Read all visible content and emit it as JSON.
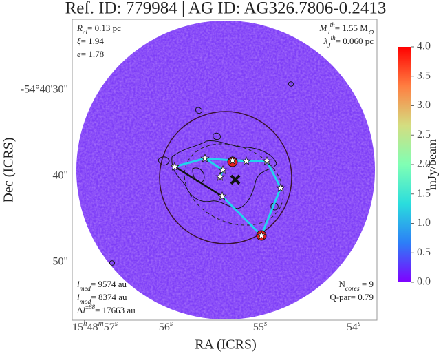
{
  "chart_data": {
    "type": "image",
    "title": "Ref. ID: 779984 | AG ID: AG326.7806-0.2413",
    "x_label": "RA (ICRS)",
    "y_label": "Dec (ICRS)",
    "xticks": [
      [
        {
          "text": "15"
        },
        {
          "text": "h",
          "style": "sup"
        },
        {
          "text": "48"
        },
        {
          "text": "m",
          "style": "sup"
        },
        {
          "text": "57"
        },
        {
          "text": "s",
          "style": "sup"
        }
      ],
      [
        {
          "text": "56"
        },
        {
          "text": "s",
          "style": "sup"
        }
      ],
      [
        {
          "text": "55"
        },
        {
          "text": "s",
          "style": "sup"
        }
      ],
      [
        {
          "text": "54"
        },
        {
          "text": "s",
          "style": "sup"
        }
      ]
    ],
    "yticks": [
      "-54°40'30\"",
      "40\"",
      "50\""
    ],
    "colorbar": {
      "label": "mJy/beam",
      "lim": [
        0,
        4
      ],
      "ticks": [
        {
          "value": 0,
          "label": "0.0"
        },
        {
          "value": 0.5,
          "label": "0.5"
        },
        {
          "value": 1,
          "label": "1.0"
        },
        {
          "value": 1.5,
          "label": "1.5"
        },
        {
          "value": 2,
          "label": "2.0"
        },
        {
          "value": 2.5,
          "label": "2.5"
        },
        {
          "value": 3,
          "label": "3.0"
        },
        {
          "value": 3.5,
          "label": "3.5"
        },
        {
          "value": 4,
          "label": "4.0"
        }
      ],
      "colormap": [
        "#8000ff",
        "#2c7ef7",
        "#2adddd",
        "#80ffb4",
        "#d4dd80",
        "#ff7e41",
        "#ff0000"
      ]
    },
    "annotations": {
      "top_left": [
        [
          {
            "text": "R",
            "style": "italic"
          },
          {
            "text": "cl",
            "style": "sub"
          },
          {
            "text": "= 0.13 pc"
          }
        ],
        [
          {
            "text": "ξ",
            "style": "italic"
          },
          {
            "text": "= 1.94"
          }
        ],
        [
          {
            "text": "e",
            "style": "italic"
          },
          {
            "text": "= 1.78"
          }
        ]
      ],
      "top_right": [
        [
          {
            "text": "M",
            "style": "italic"
          },
          {
            "text": "J",
            "style": "sub"
          },
          {
            "text": "th",
            "style": "sup"
          },
          {
            "text": "= 1.55 M"
          },
          {
            "text": "⊙",
            "style": "sub"
          }
        ],
        [
          {
            "text": "λ",
            "style": "italic"
          },
          {
            "text": "J",
            "style": "sub"
          },
          {
            "text": "th",
            "style": "sup"
          },
          {
            "text": "= 0.060 pc"
          }
        ]
      ],
      "bottom_left": [
        [
          {
            "text": "l",
            "style": "italic"
          },
          {
            "text": "med",
            "style": "sub"
          },
          {
            "text": "= 9574 au"
          }
        ],
        [
          {
            "text": "l",
            "style": "italic"
          },
          {
            "text": "mod",
            "style": "sub"
          },
          {
            "text": "= 8374 au"
          }
        ],
        [
          {
            "text": "Δ"
          },
          {
            "text": "l",
            "style": "italic"
          },
          {
            "text": "±68",
            "style": "sup"
          },
          {
            "text": "= 17663 au"
          }
        ]
      ],
      "bottom_right": [
        [
          {
            "text": "N"
          },
          {
            "text": "cores",
            "style": "sub"
          },
          {
            "text": " = 9"
          }
        ],
        [
          {
            "text": "Q-par= 0.79"
          }
        ]
      ]
    }
  }
}
